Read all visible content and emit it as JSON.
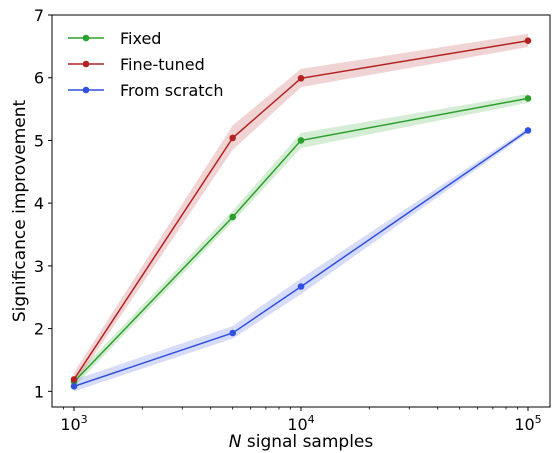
{
  "chart_data": {
    "type": "line",
    "xscale": "log",
    "x": [
      1000,
      5000,
      10000,
      100000
    ],
    "xlim": [
      800,
      125000
    ],
    "ylim": [
      0.75,
      7.0
    ],
    "xlabel_italic": "N",
    "xlabel_rest": " signal samples",
    "ylabel": "Significance improvement",
    "xticks": [
      {
        "value": 1000,
        "base": "10",
        "exp": "3"
      },
      {
        "value": 10000,
        "base": "10",
        "exp": "4"
      },
      {
        "value": 100000,
        "base": "10",
        "exp": "5"
      }
    ],
    "yticks": [
      1,
      2,
      3,
      4,
      5,
      6,
      7
    ],
    "grid": false,
    "legend_position": "top-left",
    "series": [
      {
        "name": "Fixed",
        "color": "#2ca02c",
        "band_color": "#2ca02c",
        "values": [
          1.15,
          3.78,
          5.0,
          5.67
        ],
        "lower": [
          1.07,
          3.7,
          4.88,
          5.6
        ],
        "upper": [
          1.23,
          3.88,
          5.12,
          5.74
        ]
      },
      {
        "name": "Fine-tuned",
        "color": "#b22222",
        "band_color": "#b22222",
        "values": [
          1.19,
          5.04,
          5.99,
          6.59
        ],
        "lower": [
          1.1,
          4.85,
          5.85,
          6.49
        ],
        "upper": [
          1.3,
          5.24,
          6.14,
          6.7
        ]
      },
      {
        "name": "From scratch",
        "color": "#3050e0",
        "band_color": "#3050e0",
        "values": [
          1.08,
          1.93,
          2.67,
          5.16
        ],
        "lower": [
          1.0,
          1.84,
          2.55,
          5.12
        ],
        "upper": [
          1.18,
          2.04,
          2.8,
          5.2
        ]
      }
    ]
  }
}
